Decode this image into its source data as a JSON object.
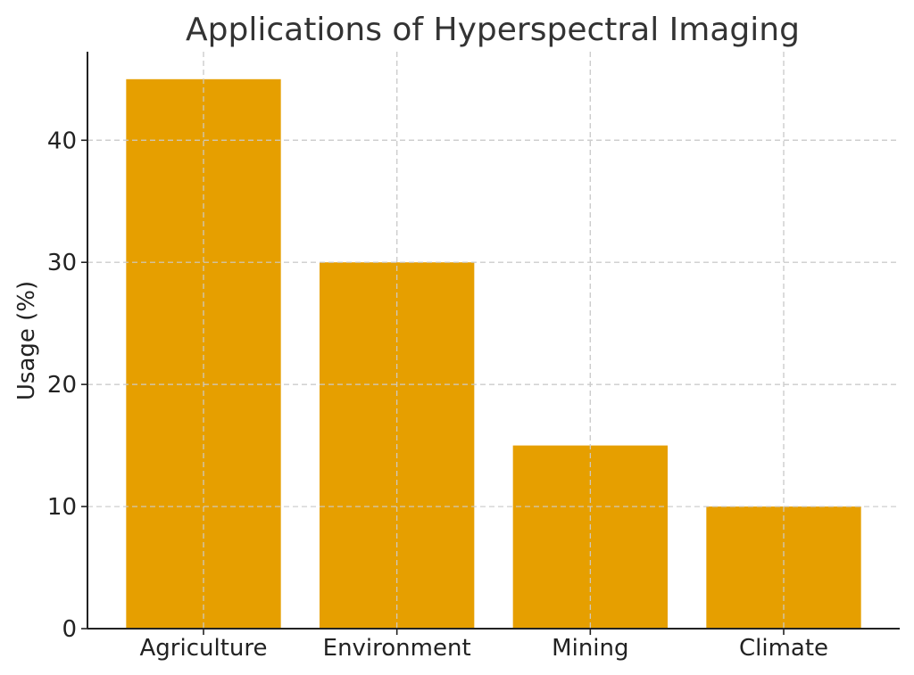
{
  "chart_data": {
    "type": "bar",
    "title": "Applications of Hyperspectral Imaging",
    "xlabel": "",
    "ylabel": "Usage (%)",
    "categories": [
      "Agriculture",
      "Environment",
      "Mining",
      "Climate"
    ],
    "values": [
      45,
      30,
      15,
      10
    ],
    "ylim": [
      0,
      47.25
    ],
    "yticks": [
      0,
      10,
      20,
      30,
      40
    ],
    "grid": true,
    "bar_color": "#E69F00"
  }
}
